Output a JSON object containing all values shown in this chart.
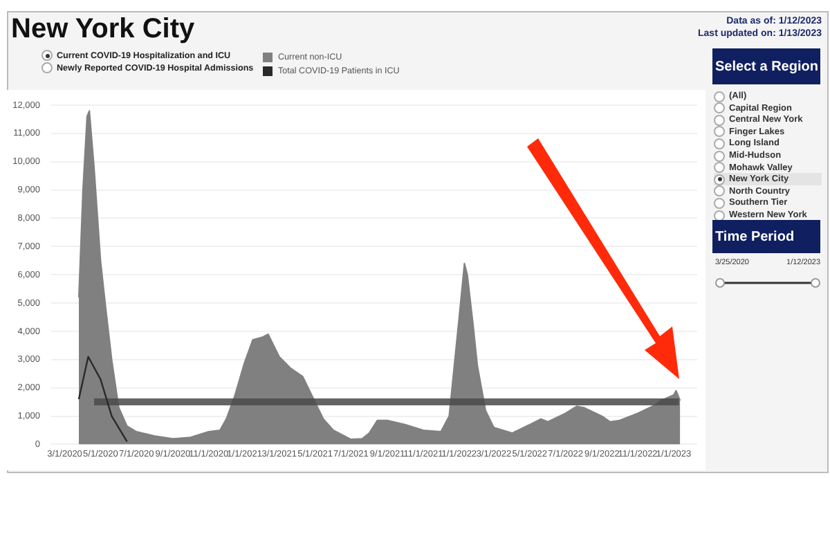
{
  "chart_data": {
    "type": "area",
    "title": "New York City",
    "annotations": [
      "Data as of: 1/12/2023",
      "Last updated on: 1/13/2023",
      "Current COVID-19 Hospitalization and ICU",
      "Newly Reported COVID-19 Hospital Admissions",
      "Select a Region",
      "(All)",
      "Capital Region",
      "Central New York",
      "Finger Lakes",
      "Long Island",
      "Mid-Hudson",
      "Mohawk Valley",
      "New York City",
      "North Country",
      "Southern Tier",
      "Western New York",
      "Time Period",
      "3/25/2020",
      "1/12/2023"
    ],
    "series": [
      {
        "name": "Current non-ICU",
        "color": "#808080",
        "x": [
          "2020-03-25",
          "2020-04-01",
          "2020-04-08",
          "2020-04-12",
          "2020-04-20",
          "2020-05-01",
          "2020-05-10",
          "2020-05-20",
          "2020-06-01",
          "2020-06-15",
          "2020-07-01",
          "2020-08-01",
          "2020-09-01",
          "2020-10-01",
          "2020-11-01",
          "2020-11-20",
          "2020-12-01",
          "2020-12-15",
          "2021-01-01",
          "2021-01-15",
          "2021-02-01",
          "2021-02-10",
          "2021-03-01",
          "2021-03-20",
          "2021-04-10",
          "2021-05-01",
          "2021-05-15",
          "2021-06-01",
          "2021-07-01",
          "2021-07-20",
          "2021-08-01",
          "2021-08-15",
          "2021-09-01",
          "2021-10-01",
          "2021-11-01",
          "2021-12-01",
          "2021-12-15",
          "2022-01-01",
          "2022-01-10",
          "2022-01-15",
          "2022-01-25",
          "2022-02-01",
          "2022-02-15",
          "2022-03-01",
          "2022-04-01",
          "2022-05-01",
          "2022-05-20",
          "2022-06-01",
          "2022-07-01",
          "2022-07-20",
          "2022-08-01",
          "2022-09-01",
          "2022-09-15",
          "2022-10-01",
          "2022-11-01",
          "2022-12-01",
          "2022-12-10",
          "2023-01-01",
          "2023-01-05",
          "2023-01-12"
        ],
        "values": [
          5200,
          9000,
          11600,
          11800,
          9800,
          6500,
          4800,
          3000,
          1300,
          650,
          450,
          300,
          200,
          250,
          450,
          500,
          900,
          1700,
          2900,
          3700,
          3800,
          3900,
          3100,
          2700,
          2400,
          1500,
          900,
          500,
          180,
          200,
          400,
          850,
          850,
          700,
          500,
          450,
          1000,
          4500,
          6400,
          6000,
          4200,
          2800,
          1200,
          600,
          400,
          700,
          900,
          800,
          1100,
          1350,
          1300,
          1000,
          800,
          850,
          1100,
          1400,
          1550,
          1750,
          1900,
          1550
        ]
      },
      {
        "name": "Total COVID-19 Patients in ICU",
        "type": "line",
        "color": "#2a2a2a",
        "x": [
          "2020-03-25",
          "2020-04-10",
          "2020-05-01",
          "2020-05-20",
          "2020-06-15"
        ],
        "values": [
          1600,
          3100,
          2300,
          1000,
          100
        ]
      },
      {
        "type": "line",
        "color": "#4a4a4a",
        "x": [
          "2020-04-20",
          "2023-01-10"
        ],
        "values": [
          1500,
          1500
        ]
      }
    ],
    "xlim": [
      "2020-02-07",
      "2023-02-10"
    ],
    "xticks": [
      {
        "value": "2020-03-01",
        "label": "3/1/2020"
      },
      {
        "value": "2020-05-01",
        "label": "5/1/2020"
      },
      {
        "value": "2020-07-01",
        "label": "7/1/2020"
      },
      {
        "value": "2020-09-01",
        "label": "9/1/2020"
      },
      {
        "value": "2020-11-01",
        "label": "11/1/2020"
      },
      {
        "value": "2021-01-01",
        "label": "1/1/2021"
      },
      {
        "value": "2021-03-01",
        "label": "3/1/2021"
      },
      {
        "value": "2021-05-01",
        "label": "5/1/2021"
      },
      {
        "value": "2021-07-01",
        "label": "7/1/2021"
      },
      {
        "value": "2021-09-01",
        "label": "9/1/2021"
      },
      {
        "value": "2021-11-01",
        "label": "11/1/2021"
      },
      {
        "value": "2022-01-01",
        "label": "1/1/2022"
      },
      {
        "value": "2022-03-01",
        "label": "3/1/2022"
      },
      {
        "value": "2022-05-01",
        "label": "5/1/2022"
      },
      {
        "value": "2022-07-01",
        "label": "7/1/2022"
      },
      {
        "value": "2022-09-01",
        "label": "9/1/2022"
      },
      {
        "value": "2022-11-01",
        "label": "11/1/2022"
      },
      {
        "value": "2023-01-01",
        "label": "1/1/2023"
      }
    ],
    "ylim": [
      0,
      12000
    ],
    "yticks": [
      0,
      {
        "value": 1000,
        "label": "1,000"
      },
      {
        "value": 2000,
        "label": "2,000"
      },
      {
        "value": 3000,
        "label": "3,000"
      },
      {
        "value": 4000,
        "label": "4,000"
      },
      {
        "value": 5000,
        "label": "5,000"
      },
      {
        "value": 6000,
        "label": "6,000"
      },
      {
        "value": 7000,
        "label": "7,000"
      },
      {
        "value": 8000,
        "label": "8,000"
      },
      {
        "value": 9000,
        "label": "9,000"
      },
      {
        "value": 10000,
        "label": "10,000"
      },
      {
        "value": 11000,
        "label": "11,000"
      },
      {
        "value": 12000,
        "label": "12,000"
      }
    ],
    "grid": "y",
    "legend": "top"
  }
}
